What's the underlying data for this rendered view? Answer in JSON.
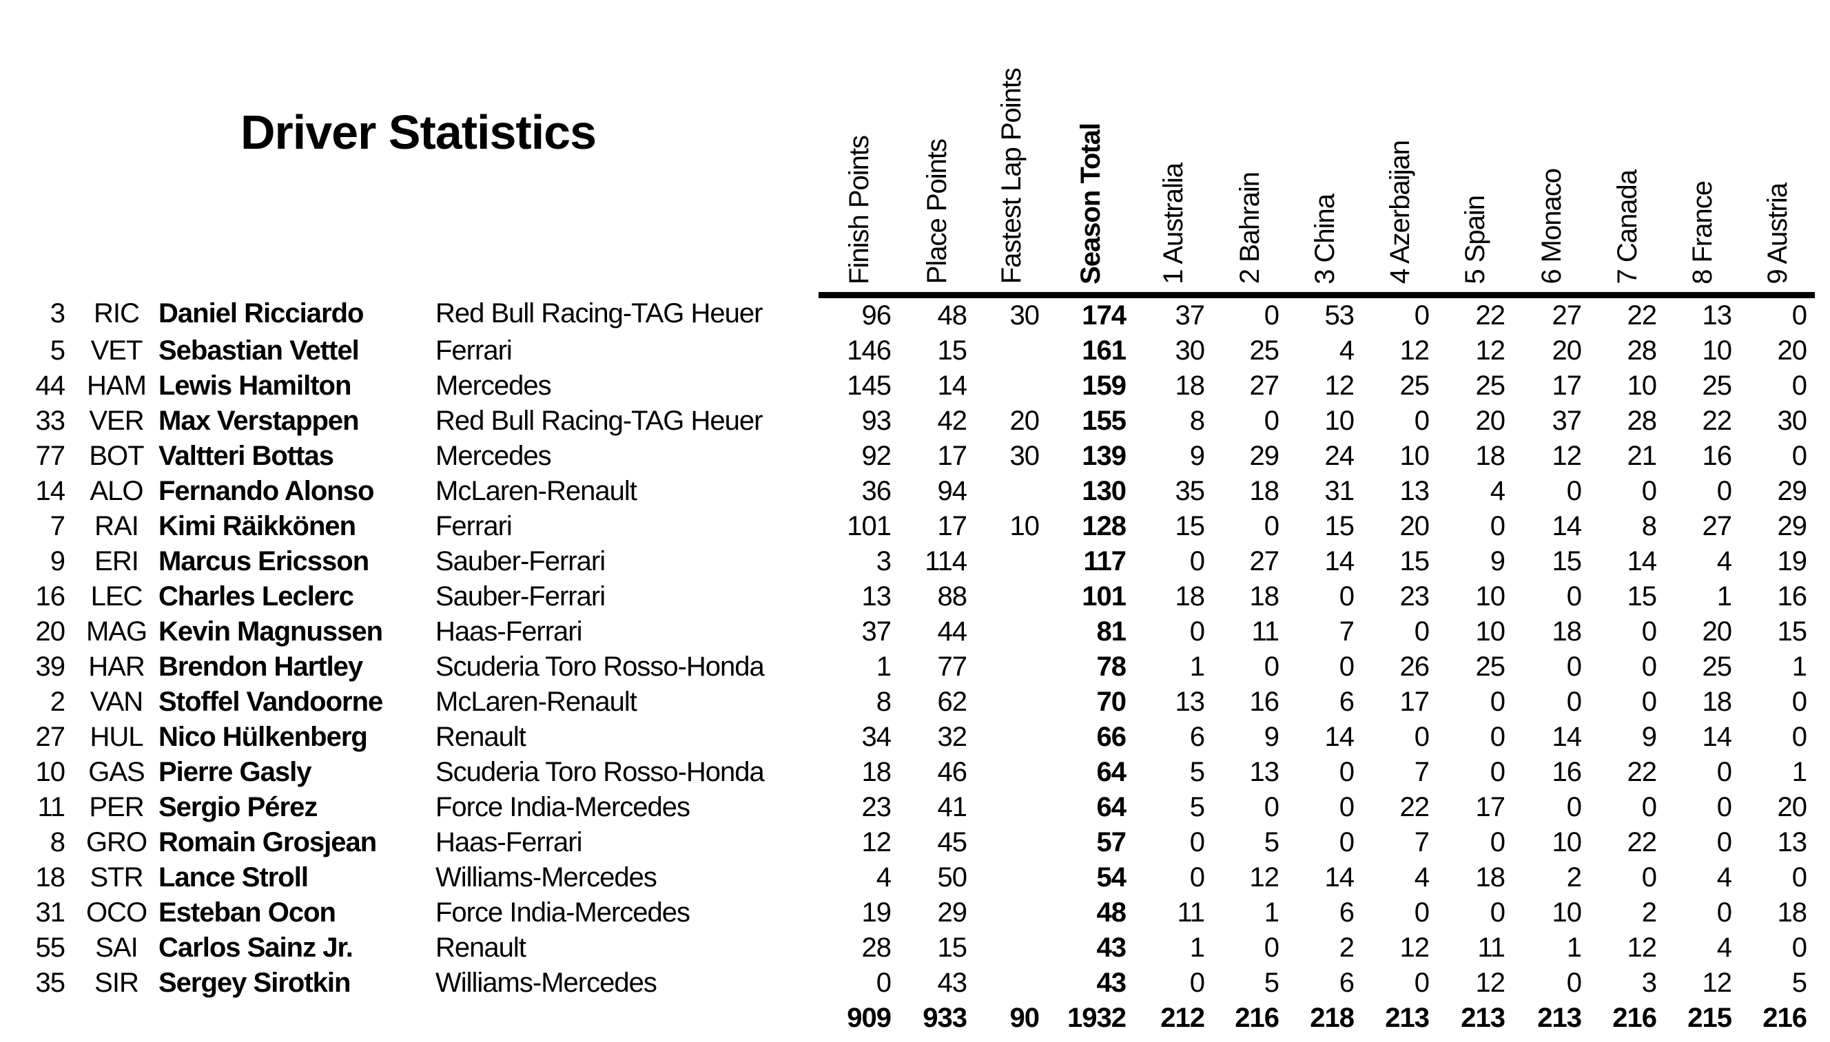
{
  "title": "Driver Statistics",
  "table": {
    "stat_columns": [
      "Finish Points",
      "Place Points",
      "Fastest Lap Points",
      "Season Total"
    ],
    "race_columns": [
      "1 Australia",
      "2 Bahrain",
      "3 China",
      "4 Azerbaijan",
      "5 Spain",
      "6 Monaco",
      "7 Canada",
      "8 France",
      "9 Austria"
    ],
    "drivers": [
      {
        "number": "3",
        "code": "RIC",
        "name": "Daniel Ricciardo",
        "team": "Red Bull Racing-TAG Heuer",
        "finish": "96",
        "place": "48",
        "fastest": "30",
        "total": "174",
        "races": [
          "37",
          "0",
          "53",
          "0",
          "22",
          "27",
          "22",
          "13",
          "0"
        ]
      },
      {
        "number": "5",
        "code": "VET",
        "name": "Sebastian Vettel",
        "team": "Ferrari",
        "finish": "146",
        "place": "15",
        "fastest": "",
        "total": "161",
        "races": [
          "30",
          "25",
          "4",
          "12",
          "12",
          "20",
          "28",
          "10",
          "20"
        ]
      },
      {
        "number": "44",
        "code": "HAM",
        "name": "Lewis Hamilton",
        "team": "Mercedes",
        "finish": "145",
        "place": "14",
        "fastest": "",
        "total": "159",
        "races": [
          "18",
          "27",
          "12",
          "25",
          "25",
          "17",
          "10",
          "25",
          "0"
        ]
      },
      {
        "number": "33",
        "code": "VER",
        "name": "Max Verstappen",
        "team": "Red Bull Racing-TAG Heuer",
        "finish": "93",
        "place": "42",
        "fastest": "20",
        "total": "155",
        "races": [
          "8",
          "0",
          "10",
          "0",
          "20",
          "37",
          "28",
          "22",
          "30"
        ]
      },
      {
        "number": "77",
        "code": "BOT",
        "name": "Valtteri Bottas",
        "team": "Mercedes",
        "finish": "92",
        "place": "17",
        "fastest": "30",
        "total": "139",
        "races": [
          "9",
          "29",
          "24",
          "10",
          "18",
          "12",
          "21",
          "16",
          "0"
        ]
      },
      {
        "number": "14",
        "code": "ALO",
        "name": "Fernando Alonso",
        "team": "McLaren-Renault",
        "finish": "36",
        "place": "94",
        "fastest": "",
        "total": "130",
        "races": [
          "35",
          "18",
          "31",
          "13",
          "4",
          "0",
          "0",
          "0",
          "29"
        ]
      },
      {
        "number": "7",
        "code": "RAI",
        "name": "Kimi Räikkönen",
        "team": "Ferrari",
        "finish": "101",
        "place": "17",
        "fastest": "10",
        "total": "128",
        "races": [
          "15",
          "0",
          "15",
          "20",
          "0",
          "14",
          "8",
          "27",
          "29"
        ]
      },
      {
        "number": "9",
        "code": "ERI",
        "name": "Marcus Ericsson",
        "team": "Sauber-Ferrari",
        "finish": "3",
        "place": "114",
        "fastest": "",
        "total": "117",
        "races": [
          "0",
          "27",
          "14",
          "15",
          "9",
          "15",
          "14",
          "4",
          "19"
        ]
      },
      {
        "number": "16",
        "code": "LEC",
        "name": "Charles Leclerc",
        "team": "Sauber-Ferrari",
        "finish": "13",
        "place": "88",
        "fastest": "",
        "total": "101",
        "races": [
          "18",
          "18",
          "0",
          "23",
          "10",
          "0",
          "15",
          "1",
          "16"
        ]
      },
      {
        "number": "20",
        "code": "MAG",
        "name": "Kevin Magnussen",
        "team": "Haas-Ferrari",
        "finish": "37",
        "place": "44",
        "fastest": "",
        "total": "81",
        "races": [
          "0",
          "11",
          "7",
          "0",
          "10",
          "18",
          "0",
          "20",
          "15"
        ]
      },
      {
        "number": "39",
        "code": "HAR",
        "name": "Brendon Hartley",
        "team": "Scuderia Toro Rosso-Honda",
        "finish": "1",
        "place": "77",
        "fastest": "",
        "total": "78",
        "races": [
          "1",
          "0",
          "0",
          "26",
          "25",
          "0",
          "0",
          "25",
          "1"
        ]
      },
      {
        "number": "2",
        "code": "VAN",
        "name": "Stoffel Vandoorne",
        "team": "McLaren-Renault",
        "finish": "8",
        "place": "62",
        "fastest": "",
        "total": "70",
        "races": [
          "13",
          "16",
          "6",
          "17",
          "0",
          "0",
          "0",
          "18",
          "0"
        ]
      },
      {
        "number": "27",
        "code": "HUL",
        "name": "Nico Hülkenberg",
        "team": "Renault",
        "finish": "34",
        "place": "32",
        "fastest": "",
        "total": "66",
        "races": [
          "6",
          "9",
          "14",
          "0",
          "0",
          "14",
          "9",
          "14",
          "0"
        ]
      },
      {
        "number": "10",
        "code": "GAS",
        "name": "Pierre Gasly",
        "team": "Scuderia Toro Rosso-Honda",
        "finish": "18",
        "place": "46",
        "fastest": "",
        "total": "64",
        "races": [
          "5",
          "13",
          "0",
          "7",
          "0",
          "16",
          "22",
          "0",
          "1"
        ]
      },
      {
        "number": "11",
        "code": "PER",
        "name": "Sergio Pérez",
        "team": "Force India-Mercedes",
        "finish": "23",
        "place": "41",
        "fastest": "",
        "total": "64",
        "races": [
          "5",
          "0",
          "0",
          "22",
          "17",
          "0",
          "0",
          "0",
          "20"
        ]
      },
      {
        "number": "8",
        "code": "GRO",
        "name": "Romain Grosjean",
        "team": "Haas-Ferrari",
        "finish": "12",
        "place": "45",
        "fastest": "",
        "total": "57",
        "races": [
          "0",
          "5",
          "0",
          "7",
          "0",
          "10",
          "22",
          "0",
          "13"
        ]
      },
      {
        "number": "18",
        "code": "STR",
        "name": "Lance Stroll",
        "team": "Williams-Mercedes",
        "finish": "4",
        "place": "50",
        "fastest": "",
        "total": "54",
        "races": [
          "0",
          "12",
          "14",
          "4",
          "18",
          "2",
          "0",
          "4",
          "0"
        ]
      },
      {
        "number": "31",
        "code": "OCO",
        "name": "Esteban Ocon",
        "team": "Force India-Mercedes",
        "finish": "19",
        "place": "29",
        "fastest": "",
        "total": "48",
        "races": [
          "11",
          "1",
          "6",
          "0",
          "0",
          "10",
          "2",
          "0",
          "18"
        ]
      },
      {
        "number": "55",
        "code": "SAI",
        "name": "Carlos Sainz Jr.",
        "team": "Renault",
        "finish": "28",
        "place": "15",
        "fastest": "",
        "total": "43",
        "races": [
          "1",
          "0",
          "2",
          "12",
          "11",
          "1",
          "12",
          "4",
          "0"
        ]
      },
      {
        "number": "35",
        "code": "SIR",
        "name": "Sergey Sirotkin",
        "team": "Williams-Mercedes",
        "finish": "0",
        "place": "43",
        "fastest": "",
        "total": "43",
        "races": [
          "0",
          "5",
          "6",
          "0",
          "12",
          "0",
          "3",
          "12",
          "5"
        ]
      }
    ],
    "totals": {
      "finish": "909",
      "place": "933",
      "fastest": "90",
      "total": "1932",
      "races": [
        "212",
        "216",
        "218",
        "213",
        "213",
        "213",
        "216",
        "215",
        "216"
      ]
    }
  }
}
